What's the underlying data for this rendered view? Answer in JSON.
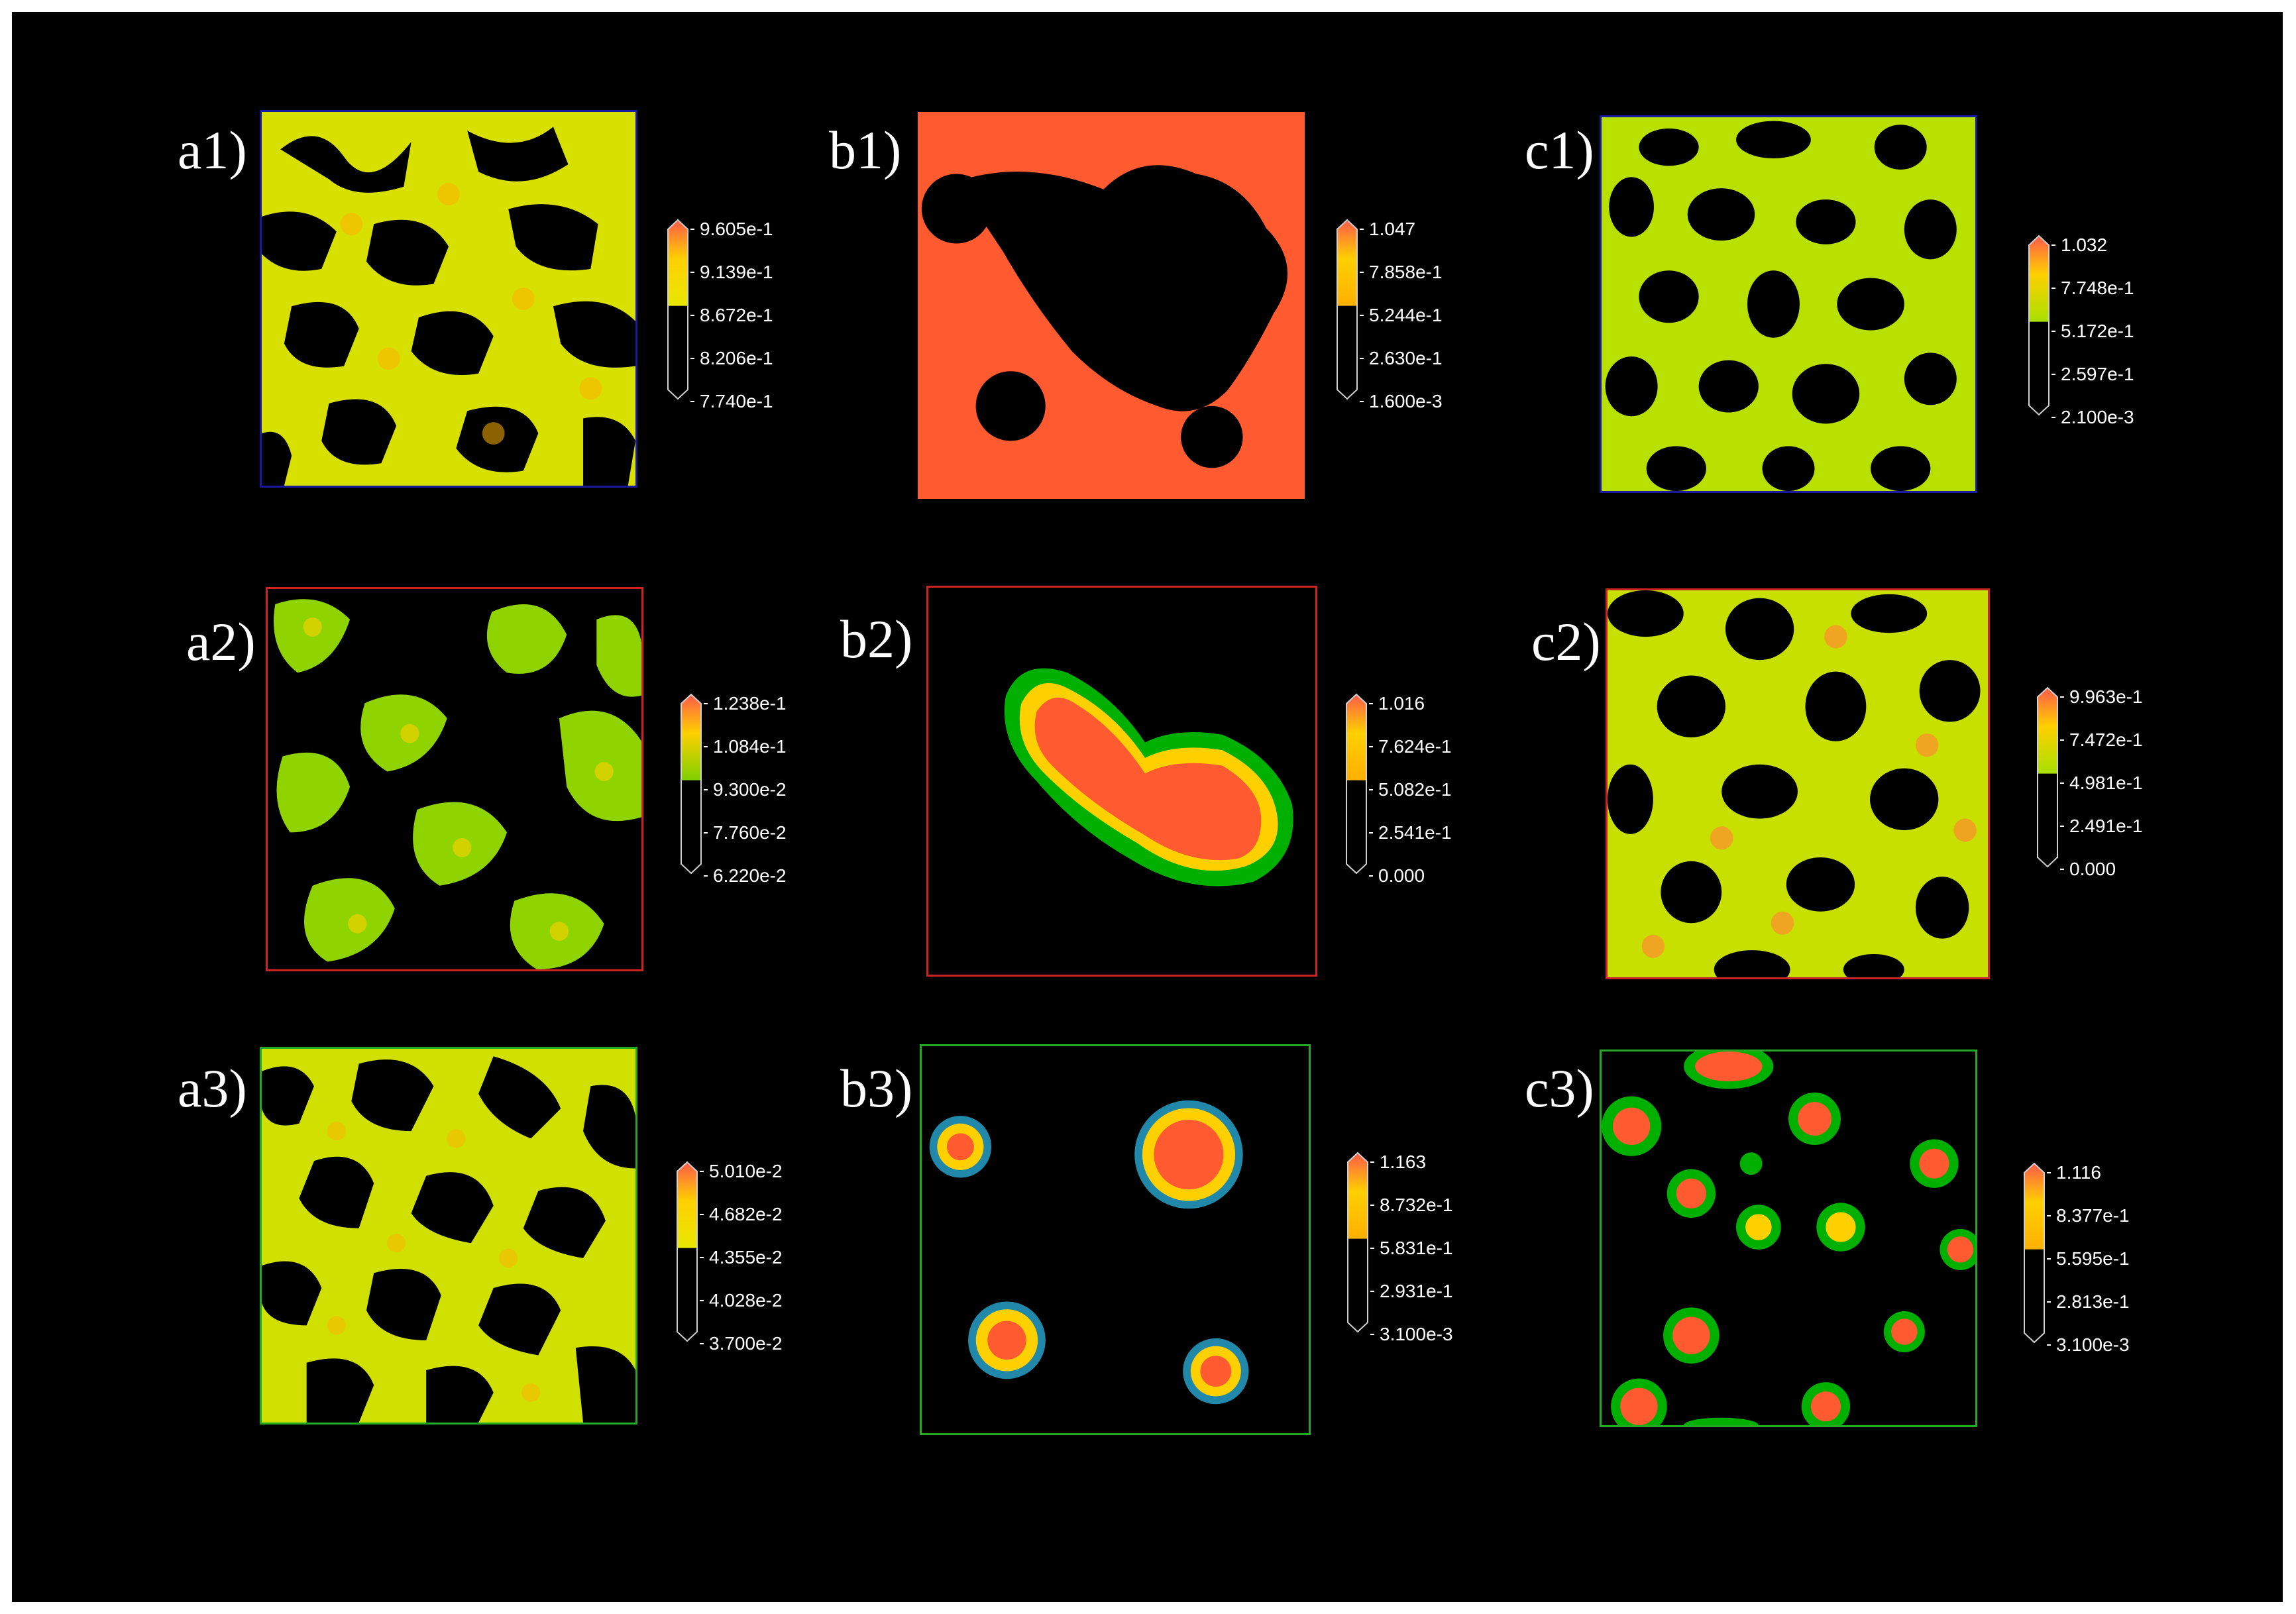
{
  "figure": {
    "background": "#000000",
    "colormap": [
      "#2266aa",
      "#00b000",
      "#7fe000",
      "#ffff00",
      "#ffb000",
      "#ff5030"
    ],
    "panels": [
      {
        "label": "a1)",
        "border": "#1a1aa0",
        "fill": "yellow",
        "pattern": "labyrinth",
        "ticks": [
          "9.605e-1",
          "9.139e-1",
          "8.672e-1",
          "8.206e-1",
          "7.740e-1"
        ]
      },
      {
        "label": "b1)",
        "border": "#000000",
        "fill": "red",
        "pattern": "red-field-black-voids",
        "ticks": [
          "1.047",
          "7.858e-1",
          "5.244e-1",
          "2.630e-1",
          "1.600e-3"
        ]
      },
      {
        "label": "c1)",
        "border": "#1a1aa0",
        "fill": "yellowgreen",
        "pattern": "holes",
        "ticks": [
          "1.032",
          "7.748e-1",
          "5.172e-1",
          "2.597e-1",
          "2.100e-3"
        ]
      },
      {
        "label": "a2)",
        "border": "#cc2222",
        "fill": "green",
        "pattern": "blobs",
        "ticks": [
          "1.238e-1",
          "1.084e-1",
          "9.300e-2",
          "7.760e-2",
          "6.220e-2"
        ]
      },
      {
        "label": "b2)",
        "border": "#cc2222",
        "fill": "red",
        "pattern": "single-droplet",
        "ticks": [
          "1.016",
          "7.624e-1",
          "5.082e-1",
          "2.541e-1",
          "0.000"
        ]
      },
      {
        "label": "c2)",
        "border": "#cc2222",
        "fill": "yellowgreen",
        "pattern": "holes",
        "ticks": [
          "9.963e-1",
          "7.472e-1",
          "4.981e-1",
          "2.491e-1",
          "0.000"
        ]
      },
      {
        "label": "a3)",
        "border": "#22aa22",
        "fill": "yellow",
        "pattern": "labyrinth",
        "ticks": [
          "5.010e-2",
          "4.682e-2",
          "4.355e-2",
          "4.028e-2",
          "3.700e-2"
        ]
      },
      {
        "label": "b3)",
        "border": "#22aa22",
        "fill": "red",
        "pattern": "four-droplets",
        "ticks": [
          "1.163",
          "8.732e-1",
          "5.831e-1",
          "2.931e-1",
          "3.100e-3"
        ]
      },
      {
        "label": "c3)",
        "border": "#22aa22",
        "fill": "red",
        "pattern": "many-droplets",
        "ticks": [
          "1.116",
          "8.377e-1",
          "5.595e-1",
          "2.813e-1",
          "3.100e-3"
        ]
      }
    ]
  }
}
